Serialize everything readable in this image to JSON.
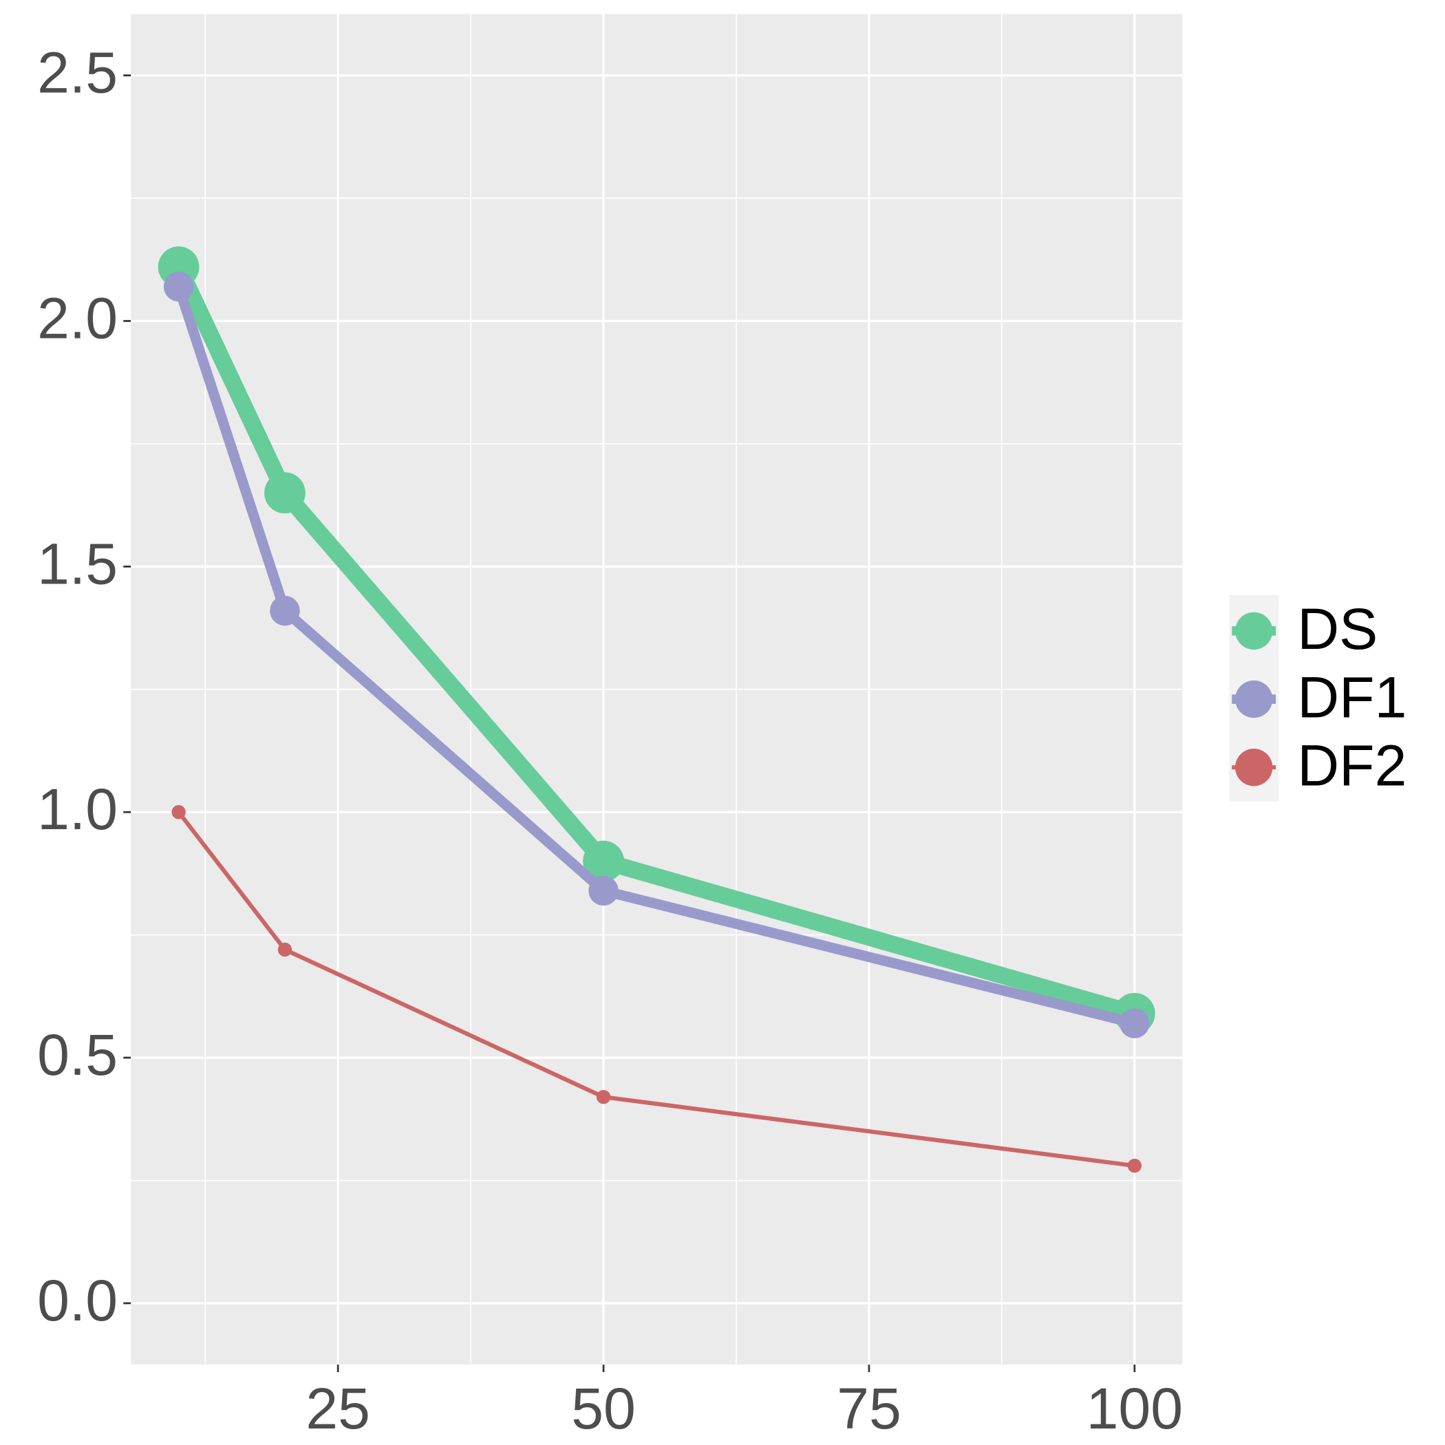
{
  "chart_data": {
    "type": "line",
    "x": [
      10,
      20,
      50,
      100
    ],
    "series": [
      {
        "name": "DS",
        "color": "#66cc99",
        "values": [
          2.11,
          1.65,
          0.9,
          0.59
        ]
      },
      {
        "name": "DF1",
        "color": "#9999cc",
        "values": [
          2.07,
          1.41,
          0.84,
          0.57
        ]
      },
      {
        "name": "DF2",
        "color": "#cc6666",
        "values": [
          1.0,
          0.72,
          0.42,
          0.28
        ]
      }
    ],
    "xlim": [
      5.5,
      104.5
    ],
    "ylim": [
      -0.125,
      2.625
    ],
    "xticks": [
      25,
      50,
      75,
      100
    ],
    "yticks": [
      {
        "value": 0,
        "label": "0.0"
      },
      0.5,
      {
        "value": 1,
        "label": "1.0"
      },
      1.5,
      {
        "value": 2,
        "label": "2.0"
      },
      2.5
    ],
    "grid": true,
    "legend": "right"
  }
}
